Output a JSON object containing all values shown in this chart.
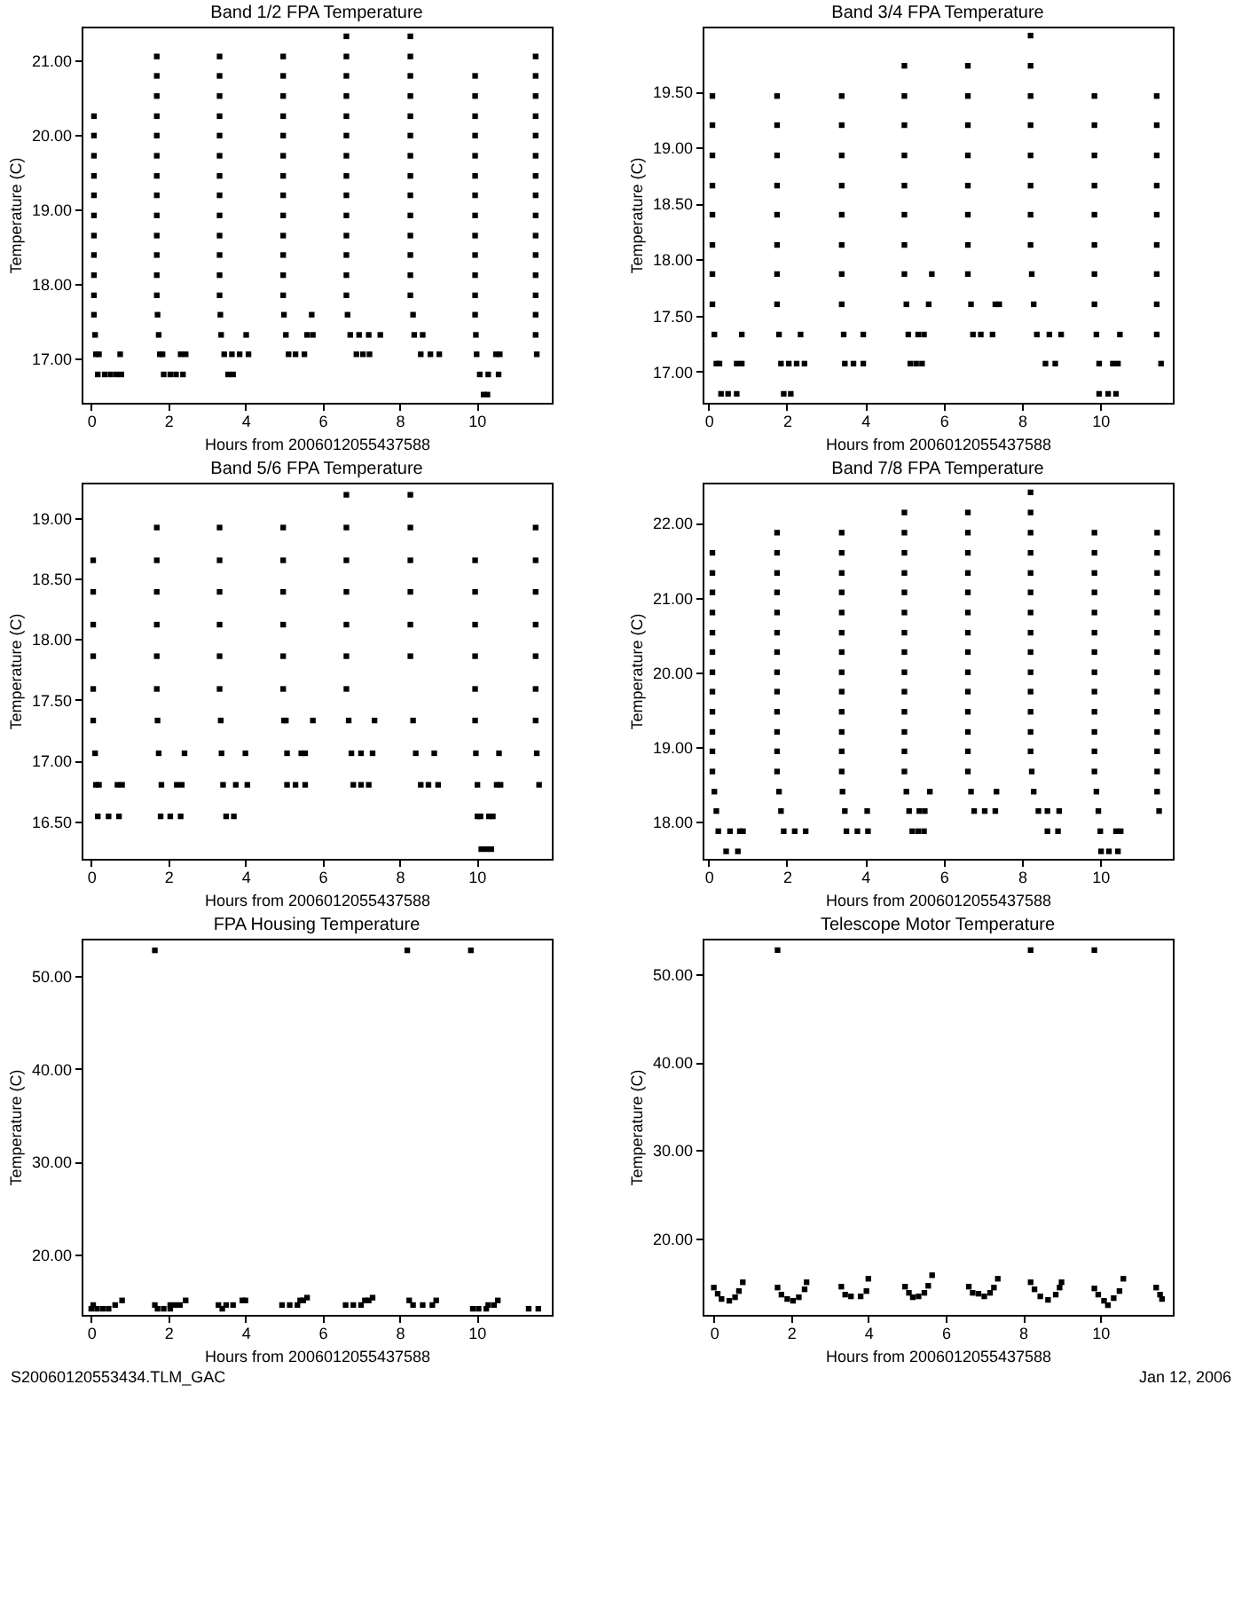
{
  "chart_data": [
    {
      "type": "scatter",
      "title": "Band 1/2 FPA Temperature",
      "xlabel": "Hours from 2006012055437588",
      "ylabel": "Temperature (C)",
      "color": "#000000",
      "marker": "square",
      "xlim": [
        -0.25,
        11.95
      ],
      "ylim": [
        16.41,
        21.45
      ],
      "xticks": [
        0,
        2,
        4,
        6,
        8,
        10
      ],
      "yticks": [
        {
          "value": 17,
          "label": "17.00"
        },
        {
          "value": 18,
          "label": "18.00"
        },
        {
          "value": 19,
          "label": "19.00"
        },
        {
          "value": 20,
          "label": "20.00"
        },
        {
          "value": 21,
          "label": "21.00"
        }
      ],
      "x": [
        0.07,
        0.07,
        0.07,
        0.07,
        0.07,
        0.07,
        0.07,
        0.07,
        0.07,
        0.07,
        0.07,
        0.1,
        0.12,
        0.2,
        0.17,
        0.35,
        0.5,
        0.65,
        0.78,
        0.75,
        1.7,
        1.7,
        1.7,
        1.7,
        1.7,
        1.7,
        1.7,
        1.7,
        1.7,
        1.7,
        1.7,
        1.7,
        1.7,
        1.72,
        1.75,
        1.78,
        1.85,
        1.88,
        2.05,
        2.2,
        2.38,
        2.32,
        2.45,
        3.33,
        3.33,
        3.33,
        3.33,
        3.33,
        3.33,
        3.33,
        3.33,
        3.33,
        3.33,
        3.33,
        3.33,
        3.33,
        3.35,
        3.37,
        3.45,
        3.65,
        3.85,
        4.08,
        3.55,
        3.68,
        4.02,
        4.98,
        4.98,
        4.98,
        4.98,
        4.98,
        4.98,
        4.98,
        4.98,
        4.98,
        4.98,
        4.98,
        4.98,
        4.98,
        5.0,
        5.05,
        5.12,
        5.3,
        5.53,
        5.6,
        5.75,
        5.72,
        6.62,
        6.62,
        6.62,
        6.62,
        6.62,
        6.62,
        6.62,
        6.62,
        6.62,
        6.62,
        6.62,
        6.62,
        6.62,
        6.62,
        6.65,
        6.72,
        6.95,
        7.2,
        7.5,
        6.88,
        7.05,
        7.22,
        8.28,
        8.28,
        8.28,
        8.28,
        8.28,
        8.28,
        8.28,
        8.28,
        8.28,
        8.28,
        8.28,
        8.28,
        8.28,
        8.28,
        8.35,
        8.38,
        8.6,
        8.55,
        8.8,
        9.03,
        9.96,
        9.96,
        9.96,
        9.96,
        9.96,
        9.96,
        9.96,
        9.96,
        9.96,
        9.96,
        9.96,
        9.96,
        9.96,
        9.98,
        10.0,
        10.08,
        10.3,
        10.57,
        10.18,
        10.28,
        10.5,
        10.6,
        11.53,
        11.53,
        11.53,
        11.53,
        11.53,
        11.53,
        11.53,
        11.53,
        11.53,
        11.53,
        11.53,
        11.53,
        11.53,
        11.53,
        11.53,
        11.56
      ],
      "values": [
        20.25,
        19.99,
        19.72,
        19.45,
        19.19,
        18.92,
        18.65,
        18.39,
        18.12,
        17.85,
        17.59,
        17.32,
        17.06,
        17.06,
        16.79,
        16.79,
        16.79,
        16.79,
        16.79,
        17.06,
        21.05,
        20.79,
        20.52,
        20.25,
        19.99,
        19.72,
        19.45,
        19.19,
        18.92,
        18.65,
        18.39,
        18.12,
        17.85,
        17.59,
        17.32,
        17.06,
        17.06,
        16.79,
        16.79,
        16.79,
        16.79,
        17.06,
        17.06,
        21.05,
        20.79,
        20.52,
        20.25,
        19.99,
        19.72,
        19.45,
        19.19,
        18.92,
        18.65,
        18.39,
        18.12,
        17.85,
        17.59,
        17.32,
        17.06,
        17.06,
        17.06,
        17.06,
        16.79,
        16.79,
        17.32,
        21.05,
        20.79,
        20.52,
        20.25,
        19.99,
        19.72,
        19.45,
        19.19,
        18.92,
        18.65,
        18.39,
        18.12,
        17.85,
        17.59,
        17.32,
        17.06,
        17.06,
        17.06,
        17.32,
        17.32,
        17.59,
        21.32,
        21.05,
        20.79,
        20.52,
        20.25,
        19.99,
        19.72,
        19.45,
        19.19,
        18.92,
        18.65,
        18.39,
        18.12,
        17.85,
        17.59,
        17.32,
        17.32,
        17.32,
        17.32,
        17.06,
        17.06,
        17.06,
        21.32,
        21.05,
        20.79,
        20.52,
        20.25,
        19.99,
        19.72,
        19.45,
        19.19,
        18.92,
        18.65,
        18.39,
        18.12,
        17.85,
        17.59,
        17.32,
        17.32,
        17.06,
        17.06,
        17.06,
        20.79,
        20.52,
        20.25,
        19.99,
        19.72,
        19.45,
        19.19,
        18.92,
        18.65,
        18.39,
        18.12,
        17.85,
        17.59,
        17.32,
        17.06,
        16.79,
        16.79,
        16.79,
        16.52,
        16.52,
        17.06,
        17.06,
        21.05,
        20.79,
        20.52,
        20.25,
        19.99,
        19.72,
        19.45,
        19.19,
        18.92,
        18.65,
        18.39,
        18.12,
        17.85,
        17.59,
        17.32,
        17.06
      ]
    },
    {
      "type": "scatter",
      "title": "Band 3/4 FPA Temperature",
      "xlabel": "Hours from 2006012055437588",
      "ylabel": "Temperature (C)",
      "color": "#000000",
      "marker": "square",
      "xlim": [
        -0.15,
        11.85
      ],
      "ylim": [
        16.72,
        20.08
      ],
      "xticks": [
        0,
        2,
        4,
        6,
        8,
        10
      ],
      "yticks": [
        {
          "value": 17,
          "label": "17.00"
        },
        {
          "value": 17.5,
          "label": "17.50"
        },
        {
          "value": 18,
          "label": "18.00"
        },
        {
          "value": 18.5,
          "label": "18.50"
        },
        {
          "value": 19,
          "label": "19.00"
        },
        {
          "value": 19.5,
          "label": "19.50"
        }
      ],
      "x": [
        0.1,
        0.1,
        0.1,
        0.1,
        0.1,
        0.1,
        0.1,
        0.1,
        0.15,
        0.2,
        0.28,
        0.32,
        0.5,
        0.72,
        0.72,
        0.85,
        0.85,
        1.75,
        1.75,
        1.75,
        1.75,
        1.75,
        1.75,
        1.75,
        1.75,
        1.8,
        1.85,
        2.05,
        2.25,
        2.45,
        1.92,
        2.1,
        2.35,
        3.4,
        3.4,
        3.4,
        3.4,
        3.4,
        3.4,
        3.4,
        3.4,
        3.45,
        3.48,
        3.7,
        3.95,
        3.95,
        5.0,
        5.0,
        5.0,
        5.0,
        5.0,
        5.0,
        5.0,
        5.0,
        5.05,
        5.1,
        5.15,
        5.3,
        5.45,
        5.35,
        5.5,
        5.62,
        5.7,
        6.62,
        6.62,
        6.62,
        6.62,
        6.62,
        6.62,
        6.62,
        6.62,
        6.7,
        6.75,
        6.95,
        7.25,
        7.32,
        7.42,
        8.22,
        8.22,
        8.22,
        8.22,
        8.22,
        8.22,
        8.22,
        8.22,
        8.25,
        8.3,
        8.38,
        8.7,
        9.0,
        8.6,
        8.85,
        9.85,
        9.85,
        9.85,
        9.85,
        9.85,
        9.85,
        9.85,
        9.85,
        9.9,
        9.97,
        9.97,
        10.2,
        10.4,
        10.32,
        10.45,
        10.5,
        11.44,
        11.44,
        11.44,
        11.44,
        11.44,
        11.44,
        11.44,
        11.44,
        11.44,
        11.55
      ],
      "values": [
        19.46,
        19.2,
        18.93,
        18.66,
        18.4,
        18.13,
        17.87,
        17.6,
        17.33,
        17.07,
        17.07,
        16.8,
        16.8,
        16.8,
        17.07,
        17.07,
        17.33,
        19.46,
        19.2,
        18.93,
        18.66,
        18.4,
        18.13,
        17.87,
        17.6,
        17.33,
        17.07,
        17.07,
        17.07,
        17.07,
        16.8,
        16.8,
        17.33,
        19.46,
        19.2,
        18.93,
        18.66,
        18.4,
        18.13,
        17.87,
        17.6,
        17.33,
        17.07,
        17.07,
        17.07,
        17.33,
        19.73,
        19.46,
        19.2,
        18.93,
        18.66,
        18.4,
        18.13,
        17.87,
        17.6,
        17.33,
        17.07,
        17.07,
        17.07,
        17.33,
        17.33,
        17.6,
        17.87,
        19.73,
        19.46,
        19.2,
        18.93,
        18.66,
        18.4,
        18.13,
        17.87,
        17.6,
        17.33,
        17.33,
        17.33,
        17.6,
        17.6,
        20.0,
        19.73,
        19.46,
        19.2,
        18.93,
        18.66,
        18.4,
        18.13,
        17.87,
        17.6,
        17.33,
        17.33,
        17.33,
        17.07,
        17.07,
        19.46,
        19.2,
        18.93,
        18.66,
        18.4,
        18.13,
        17.87,
        17.6,
        17.33,
        17.07,
        16.8,
        16.8,
        16.8,
        17.07,
        17.07,
        17.33,
        19.46,
        19.2,
        18.93,
        18.66,
        18.4,
        18.13,
        17.87,
        17.6,
        17.33,
        17.07
      ]
    },
    {
      "type": "scatter",
      "title": "Band 5/6 FPA Temperature",
      "xlabel": "Hours from 2006012055437588",
      "ylabel": "Temperature (C)",
      "color": "#000000",
      "marker": "square",
      "xlim": [
        -0.25,
        11.95
      ],
      "ylim": [
        16.19,
        19.29
      ],
      "xticks": [
        0,
        2,
        4,
        6,
        8,
        10
      ],
      "yticks": [
        {
          "value": 16.5,
          "label": "16.50"
        },
        {
          "value": 17,
          "label": "17.00"
        },
        {
          "value": 17.5,
          "label": "17.50"
        },
        {
          "value": 18,
          "label": "18.00"
        },
        {
          "value": 18.5,
          "label": "18.50"
        },
        {
          "value": 19,
          "label": "19.00"
        }
      ],
      "x": [
        0.05,
        0.05,
        0.05,
        0.05,
        0.05,
        0.05,
        0.1,
        0.12,
        0.2,
        0.17,
        0.45,
        0.72,
        0.68,
        0.8,
        1.7,
        1.7,
        1.7,
        1.7,
        1.7,
        1.7,
        1.72,
        1.75,
        1.82,
        1.8,
        2.05,
        2.32,
        2.22,
        2.35,
        2.42,
        3.33,
        3.33,
        3.33,
        3.33,
        3.33,
        3.33,
        3.36,
        3.38,
        3.42,
        3.75,
        4.05,
        3.5,
        3.7,
        4.0,
        4.98,
        4.98,
        4.98,
        4.98,
        4.98,
        4.98,
        5.0,
        5.05,
        5.08,
        5.08,
        5.3,
        5.55,
        5.45,
        5.55,
        5.75,
        6.62,
        6.62,
        6.62,
        6.62,
        6.62,
        6.62,
        6.62,
        6.68,
        6.75,
        7.0,
        7.3,
        6.8,
        7.0,
        7.2,
        7.35,
        8.28,
        8.28,
        8.28,
        8.28,
        8.28,
        8.28,
        8.35,
        8.42,
        8.55,
        8.75,
        9.0,
        8.9,
        9.96,
        9.96,
        9.96,
        9.96,
        9.96,
        9.96,
        9.98,
        10.02,
        10.02,
        10.1,
        10.12,
        10.25,
        10.38,
        10.32,
        10.42,
        10.52,
        10.62,
        10.58,
        11.53,
        11.53,
        11.53,
        11.53,
        11.53,
        11.53,
        11.53,
        11.56,
        11.62
      ],
      "values": [
        18.65,
        18.39,
        18.12,
        17.86,
        17.59,
        17.33,
        17.06,
        16.8,
        16.8,
        16.54,
        16.54,
        16.54,
        16.8,
        16.8,
        18.92,
        18.65,
        18.39,
        18.12,
        17.86,
        17.59,
        17.33,
        17.06,
        16.8,
        16.54,
        16.54,
        16.54,
        16.8,
        16.8,
        17.06,
        18.92,
        18.65,
        18.39,
        18.12,
        17.86,
        17.59,
        17.33,
        17.06,
        16.8,
        16.8,
        16.8,
        16.54,
        16.54,
        17.06,
        18.92,
        18.65,
        18.39,
        18.12,
        17.86,
        17.59,
        17.33,
        17.33,
        17.06,
        16.8,
        16.8,
        16.8,
        17.06,
        17.06,
        17.33,
        19.19,
        18.92,
        18.65,
        18.39,
        18.12,
        17.86,
        17.59,
        17.33,
        17.06,
        17.06,
        17.06,
        16.8,
        16.8,
        16.8,
        17.33,
        19.19,
        18.92,
        18.65,
        18.39,
        18.12,
        17.86,
        17.33,
        17.06,
        16.8,
        16.8,
        16.8,
        17.06,
        18.65,
        18.39,
        18.12,
        17.86,
        17.59,
        17.33,
        17.06,
        16.8,
        16.54,
        16.54,
        16.27,
        16.27,
        16.27,
        16.54,
        16.54,
        16.8,
        16.8,
        17.06,
        18.92,
        18.65,
        18.39,
        18.12,
        17.86,
        17.59,
        17.33,
        17.06,
        16.8
      ]
    },
    {
      "type": "scatter",
      "title": "Band 7/8 FPA Temperature",
      "xlabel": "Hours from 2006012055437588",
      "ylabel": "Temperature (C)",
      "color": "#000000",
      "marker": "square",
      "xlim": [
        -0.15,
        11.85
      ],
      "ylim": [
        17.5,
        22.54
      ],
      "xticks": [
        0,
        2,
        4,
        6,
        8,
        10
      ],
      "yticks": [
        {
          "value": 18,
          "label": "18.00"
        },
        {
          "value": 19,
          "label": "19.00"
        },
        {
          "value": 20,
          "label": "20.00"
        },
        {
          "value": 21,
          "label": "21.00"
        },
        {
          "value": 22,
          "label": "22.00"
        }
      ],
      "x": [
        0.1,
        0.1,
        0.1,
        0.1,
        0.1,
        0.1,
        0.1,
        0.1,
        0.1,
        0.1,
        0.1,
        0.1,
        0.15,
        0.2,
        0.25,
        0.55,
        0.45,
        0.75,
        0.8,
        0.88,
        1.75,
        1.75,
        1.75,
        1.75,
        1.75,
        1.75,
        1.75,
        1.75,
        1.75,
        1.75,
        1.75,
        1.75,
        1.75,
        1.8,
        1.85,
        1.92,
        2.2,
        2.48,
        3.4,
        3.4,
        3.4,
        3.4,
        3.4,
        3.4,
        3.4,
        3.4,
        3.4,
        3.4,
        3.4,
        3.4,
        3.4,
        3.42,
        3.48,
        3.52,
        3.8,
        4.07,
        4.05,
        5.0,
        5.0,
        5.0,
        5.0,
        5.0,
        5.0,
        5.0,
        5.0,
        5.0,
        5.0,
        5.0,
        5.0,
        5.0,
        5.0,
        5.05,
        5.12,
        5.2,
        5.35,
        5.5,
        5.38,
        5.52,
        5.65,
        6.62,
        6.62,
        6.62,
        6.62,
        6.62,
        6.62,
        6.62,
        6.62,
        6.62,
        6.62,
        6.62,
        6.62,
        6.62,
        6.62,
        6.7,
        6.78,
        7.05,
        7.32,
        7.35,
        8.22,
        8.22,
        8.22,
        8.22,
        8.22,
        8.22,
        8.22,
        8.22,
        8.22,
        8.22,
        8.22,
        8.22,
        8.22,
        8.22,
        8.25,
        8.3,
        8.42,
        8.65,
        8.65,
        8.92,
        8.95,
        9.85,
        9.85,
        9.85,
        9.85,
        9.85,
        9.85,
        9.85,
        9.85,
        9.85,
        9.85,
        9.85,
        9.85,
        9.85,
        9.9,
        9.95,
        10.0,
        10.02,
        10.22,
        10.45,
        10.4,
        10.52,
        11.45,
        11.45,
        11.45,
        11.45,
        11.45,
        11.45,
        11.45,
        11.45,
        11.45,
        11.45,
        11.45,
        11.45,
        11.45,
        11.45,
        11.5
      ],
      "values": [
        21.6,
        21.33,
        21.07,
        20.8,
        20.53,
        20.27,
        20.0,
        19.74,
        19.47,
        19.2,
        18.94,
        18.67,
        18.4,
        18.14,
        17.87,
        17.87,
        17.6,
        17.6,
        17.87,
        17.87,
        21.87,
        21.6,
        21.33,
        21.07,
        20.8,
        20.53,
        20.27,
        20.0,
        19.74,
        19.47,
        19.2,
        18.94,
        18.67,
        18.4,
        18.14,
        17.87,
        17.87,
        17.87,
        21.87,
        21.6,
        21.33,
        21.07,
        20.8,
        20.53,
        20.27,
        20.0,
        19.74,
        19.47,
        19.2,
        18.94,
        18.67,
        18.4,
        18.14,
        17.87,
        17.87,
        17.87,
        18.14,
        22.14,
        21.87,
        21.6,
        21.33,
        21.07,
        20.8,
        20.53,
        20.27,
        20.0,
        19.74,
        19.47,
        19.2,
        18.94,
        18.67,
        18.4,
        18.14,
        17.87,
        17.87,
        17.87,
        18.14,
        18.14,
        18.4,
        22.14,
        21.87,
        21.6,
        21.33,
        21.07,
        20.8,
        20.53,
        20.27,
        20.0,
        19.74,
        19.47,
        19.2,
        18.94,
        18.67,
        18.4,
        18.14,
        18.14,
        18.14,
        18.4,
        22.41,
        22.14,
        21.87,
        21.6,
        21.33,
        21.07,
        20.8,
        20.53,
        20.27,
        20.0,
        19.74,
        19.47,
        19.2,
        18.94,
        18.67,
        18.4,
        18.14,
        18.14,
        17.87,
        17.87,
        18.14,
        21.87,
        21.6,
        21.33,
        21.07,
        20.8,
        20.53,
        20.27,
        20.0,
        19.74,
        19.47,
        19.2,
        18.94,
        18.67,
        18.4,
        18.14,
        17.87,
        17.6,
        17.6,
        17.6,
        17.87,
        17.87,
        21.87,
        21.6,
        21.33,
        21.07,
        20.8,
        20.53,
        20.27,
        20.0,
        19.74,
        19.47,
        19.2,
        18.94,
        18.67,
        18.4,
        18.14
      ]
    },
    {
      "type": "scatter",
      "title": "FPA Housing Temperature",
      "xlabel": "Hours from 2006012055437588",
      "ylabel": "Temperature (C)",
      "color": "#000000",
      "marker": "square",
      "xlim": [
        -0.25,
        11.95
      ],
      "ylim": [
        13.44,
        54.06
      ],
      "xticks": [
        0,
        2,
        4,
        6,
        8,
        10
      ],
      "yticks": [
        {
          "value": 20,
          "label": "20.00"
        },
        {
          "value": 30,
          "label": "30.00"
        },
        {
          "value": 40,
          "label": "40.00"
        },
        {
          "value": 50,
          "label": "50.00"
        }
      ],
      "annotations": [
        "S20060120553434.TLM_GAC"
      ],
      "x": [
        0.0,
        0.15,
        0.3,
        0.45,
        0.05,
        0.62,
        0.8,
        1.65,
        1.65,
        1.72,
        1.88,
        2.05,
        2.05,
        2.18,
        2.3,
        2.45,
        3.3,
        3.4,
        3.5,
        3.68,
        3.92,
        4.0,
        4.95,
        5.15,
        5.35,
        5.42,
        5.5,
        5.6,
        6.6,
        6.8,
        7.0,
        7.1,
        7.2,
        7.3,
        8.2,
        8.25,
        8.35,
        8.6,
        8.85,
        8.95,
        9.85,
        9.9,
        10.05,
        10.25,
        10.3,
        10.45,
        10.55,
        11.35,
        11.6
      ],
      "values": [
        14.1,
        14.1,
        14.1,
        14.1,
        14.5,
        14.5,
        15.0,
        14.5,
        52.8,
        14.1,
        14.1,
        14.1,
        14.5,
        14.5,
        14.5,
        15.0,
        14.5,
        14.1,
        14.5,
        14.5,
        15.0,
        15.0,
        14.5,
        14.5,
        14.5,
        15.0,
        15.0,
        15.3,
        14.5,
        14.5,
        14.5,
        15.0,
        15.0,
        15.3,
        52.8,
        15.0,
        14.5,
        14.5,
        14.5,
        15.0,
        52.8,
        14.1,
        14.1,
        14.1,
        14.5,
        14.5,
        15.0,
        14.1,
        14.1
      ]
    },
    {
      "type": "scatter",
      "title": "Telescope Motor Temperature",
      "xlabel": "Hours from 2006012055437588",
      "ylabel": "Temperature (C)",
      "color": "#000000",
      "marker": "square",
      "xlim": [
        -0.29,
        11.88
      ],
      "ylim": [
        11.3,
        54.0
      ],
      "xticks": [
        0,
        2,
        4,
        6,
        8,
        10
      ],
      "yticks": [
        {
          "value": 20,
          "label": "20.00"
        },
        {
          "value": 30,
          "label": "30.00"
        },
        {
          "value": 40,
          "label": "40.00"
        },
        {
          "value": 50,
          "label": "50.00"
        }
      ],
      "annotations": [
        "Jan 12, 2006"
      ],
      "x": [
        0.0,
        0.1,
        0.2,
        0.4,
        0.55,
        0.65,
        0.75,
        1.65,
        1.65,
        1.75,
        1.9,
        2.05,
        2.2,
        2.35,
        2.4,
        3.3,
        3.4,
        3.55,
        3.8,
        3.95,
        4.0,
        4.95,
        5.05,
        5.15,
        5.3,
        5.45,
        5.55,
        5.65,
        6.6,
        6.7,
        6.85,
        7.0,
        7.15,
        7.25,
        7.35,
        8.2,
        8.2,
        8.3,
        8.45,
        8.65,
        8.85,
        8.95,
        9.0,
        9.85,
        9.85,
        9.95,
        10.1,
        10.2,
        10.35,
        10.5,
        10.6,
        11.45,
        11.55,
        11.6
      ],
      "values": [
        14.4,
        13.7,
        13.1,
        12.9,
        13.3,
        14.0,
        15.0,
        52.7,
        14.4,
        13.6,
        13.1,
        12.9,
        13.3,
        14.2,
        15.0,
        14.5,
        13.6,
        13.4,
        13.4,
        14.0,
        15.4,
        14.5,
        13.8,
        13.3,
        13.4,
        13.8,
        14.6,
        15.8,
        14.5,
        13.8,
        13.7,
        13.4,
        13.8,
        14.4,
        15.4,
        52.7,
        15.0,
        14.2,
        13.4,
        13.0,
        13.6,
        14.4,
        15.0,
        52.7,
        14.3,
        13.6,
        12.9,
        12.4,
        13.2,
        14.0,
        15.4,
        14.4,
        13.6,
        13.1
      ]
    }
  ]
}
